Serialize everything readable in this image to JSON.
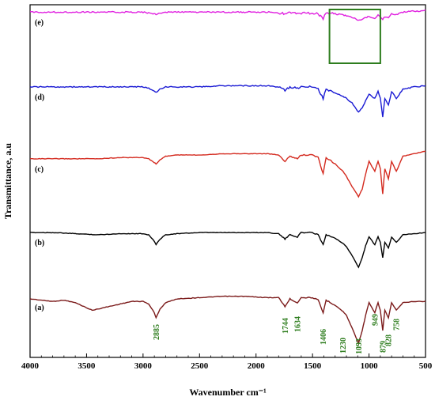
{
  "chart_data": {
    "type": "line",
    "xlabel": "Wavenumber cm⁻¹",
    "ylabel": "Transmittance, a.u",
    "xlim": [
      4000,
      500
    ],
    "x_reversed": true,
    "x_ticks": [
      "4000",
      "3500",
      "3000",
      "2500",
      "2000",
      "1500",
      "1000",
      "500"
    ],
    "x_tick_values": [
      4000,
      3500,
      3000,
      2500,
      2000,
      1500,
      1000,
      500
    ],
    "y_ticks_shown": false,
    "grid": false,
    "legend": "inline-labels",
    "series": [
      {
        "name": "(a)",
        "color": "#7b1a1a",
        "offset": 0,
        "x": [
          4000,
          3900,
          3800,
          3700,
          3600,
          3500,
          3450,
          3400,
          3300,
          3200,
          3100,
          3000,
          2950,
          2900,
          2885,
          2850,
          2800,
          2700,
          2500,
          2300,
          2100,
          1900,
          1800,
          1744,
          1700,
          1634,
          1600,
          1500,
          1450,
          1406,
          1380,
          1300,
          1230,
          1200,
          1150,
          1093,
          1060,
          1030,
          1000,
          949,
          920,
          900,
          879,
          860,
          828,
          800,
          758,
          700,
          600,
          500
        ],
        "y": [
          95,
          94,
          93,
          94,
          92,
          88,
          86,
          87,
          89,
          91,
          93,
          93,
          91,
          84,
          80,
          87,
          92,
          95,
          96,
          97,
          97,
          96,
          96,
          89,
          95,
          92,
          96,
          96,
          94,
          84,
          94,
          90,
          85,
          82,
          72,
          60,
          70,
          82,
          92,
          84,
          92,
          86,
          70,
          86,
          80,
          92,
          86,
          92,
          93,
          93
        ]
      },
      {
        "name": "(b)",
        "color": "#000000",
        "offset": 1,
        "x": [
          4000,
          3800,
          3600,
          3400,
          3200,
          3000,
          2950,
          2900,
          2885,
          2850,
          2800,
          2700,
          2500,
          2300,
          2100,
          1900,
          1800,
          1744,
          1700,
          1634,
          1600,
          1500,
          1450,
          1406,
          1380,
          1300,
          1230,
          1200,
          1150,
          1093,
          1060,
          1030,
          1000,
          949,
          920,
          900,
          879,
          860,
          828,
          800,
          758,
          700,
          600,
          500
        ],
        "y": [
          97,
          97,
          96,
          95,
          96,
          96,
          95,
          89,
          86,
          91,
          95,
          96,
          97,
          97,
          97,
          97,
          96,
          91,
          95,
          93,
          97,
          97,
          95,
          86,
          95,
          92,
          87,
          84,
          76,
          65,
          74,
          85,
          93,
          86,
          93,
          88,
          74,
          88,
          83,
          93,
          88,
          95,
          96,
          97
        ]
      },
      {
        "name": "(c)",
        "color": "#d42a1f",
        "offset": 2,
        "x": [
          4000,
          3800,
          3600,
          3400,
          3200,
          3000,
          2950,
          2900,
          2885,
          2850,
          2800,
          2700,
          2500,
          2300,
          2100,
          1900,
          1800,
          1744,
          1700,
          1634,
          1600,
          1500,
          1450,
          1406,
          1380,
          1300,
          1230,
          1200,
          1150,
          1093,
          1060,
          1030,
          1000,
          949,
          920,
          900,
          879,
          860,
          828,
          800,
          758,
          700,
          600,
          500
        ],
        "y": [
          92,
          92,
          92,
          92,
          93,
          93,
          92,
          89,
          88,
          91,
          94,
          95,
          95,
          96,
          96,
          96,
          95,
          90,
          94,
          92,
          95,
          95,
          93,
          80,
          93,
          88,
          82,
          78,
          70,
          62,
          68,
          80,
          90,
          82,
          90,
          84,
          64,
          84,
          76,
          90,
          82,
          94,
          96,
          98
        ]
      },
      {
        "name": "(d)",
        "color": "#1a1ad4",
        "offset": 3,
        "x": [
          4000,
          3800,
          3600,
          3400,
          3200,
          3000,
          2950,
          2900,
          2885,
          2850,
          2800,
          2700,
          2500,
          2300,
          2100,
          1900,
          1800,
          1744,
          1700,
          1634,
          1600,
          1500,
          1450,
          1406,
          1380,
          1300,
          1230,
          1200,
          1150,
          1093,
          1060,
          1030,
          1000,
          949,
          920,
          900,
          879,
          860,
          828,
          800,
          758,
          700,
          600,
          500
        ],
        "y": [
          96,
          96,
          96,
          96,
          96,
          96,
          95,
          92,
          91,
          94,
          96,
          96,
          96,
          97,
          97,
          97,
          96,
          93,
          96,
          95,
          96,
          96,
          94,
          86,
          94,
          91,
          88,
          86,
          82,
          74,
          78,
          84,
          90,
          86,
          92,
          86,
          70,
          86,
          80,
          92,
          86,
          94,
          96,
          97
        ]
      },
      {
        "name": "(e)",
        "color": "#e020e0",
        "offset": 4,
        "x": [
          4000,
          3800,
          3600,
          3400,
          3200,
          3000,
          2950,
          2900,
          2885,
          2850,
          2800,
          2700,
          2500,
          2300,
          2100,
          1900,
          1800,
          1744,
          1700,
          1634,
          1600,
          1500,
          1450,
          1406,
          1380,
          1300,
          1230,
          1200,
          1150,
          1093,
          1060,
          1030,
          1000,
          949,
          920,
          900,
          879,
          860,
          828,
          800,
          758,
          700,
          600,
          500
        ],
        "y": [
          97,
          97,
          97,
          97,
          97,
          97,
          96,
          95,
          94,
          96,
          97,
          97,
          97,
          97,
          97,
          97,
          96,
          95,
          96,
          96,
          96,
          96,
          95,
          90,
          96,
          95,
          94,
          93,
          91,
          88,
          89,
          91,
          92,
          90,
          94,
          92,
          88,
          92,
          91,
          95,
          94,
          97,
          98,
          99
        ]
      }
    ],
    "annotations": {
      "peaks": [
        {
          "label": "2885",
          "x": 2885
        },
        {
          "label": "1744",
          "x": 1744
        },
        {
          "label": "1634",
          "x": 1634
        },
        {
          "label": "1406",
          "x": 1406
        },
        {
          "label": "1230",
          "x": 1230
        },
        {
          "label": "1093",
          "x": 1093
        },
        {
          "label": "949",
          "x": 949
        },
        {
          "label": "879",
          "x": 879
        },
        {
          "label": "828",
          "x": 828
        },
        {
          "label": "758",
          "x": 758
        }
      ],
      "highlight_box": {
        "x_range": [
          1350,
          900
        ],
        "series": "(e)",
        "color": "#2e7d1e"
      }
    }
  }
}
